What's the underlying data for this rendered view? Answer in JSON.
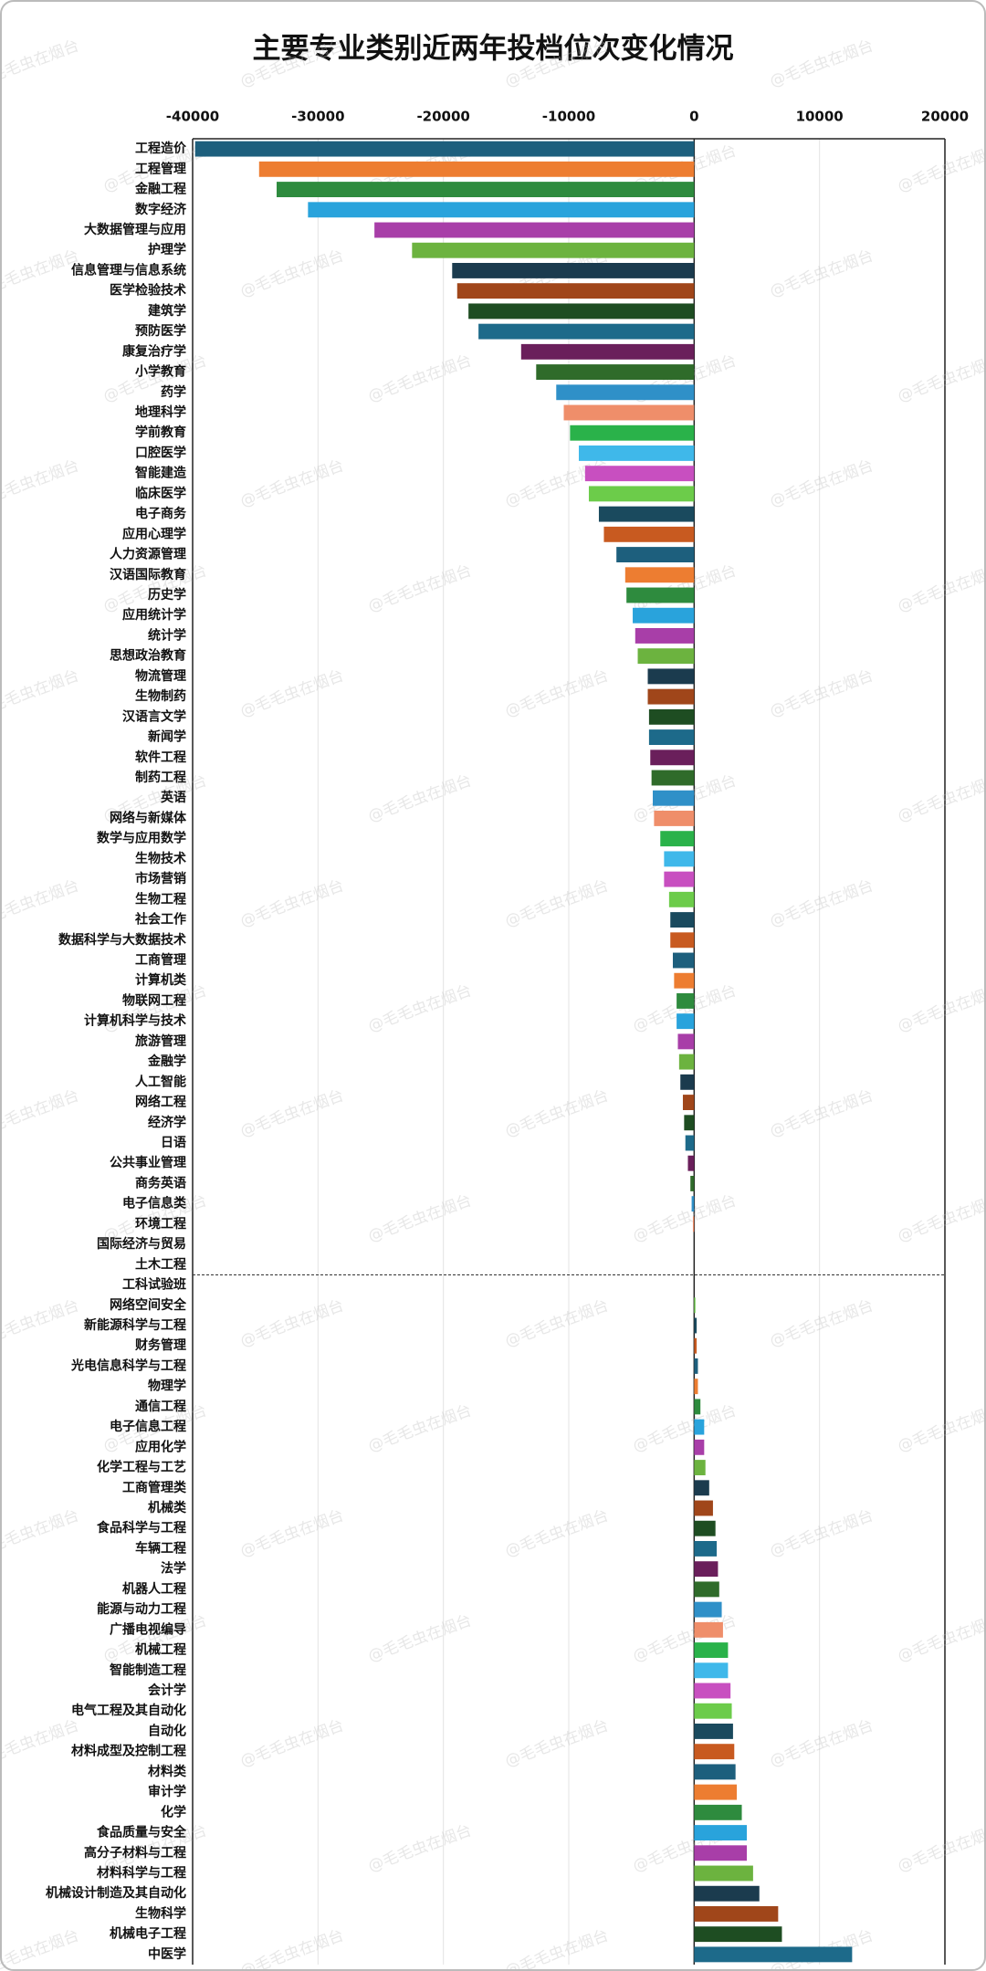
{
  "chart_data": {
    "type": "barh",
    "title": "主要专业类别近两年投档位次变化情况",
    "watermark": "@毛毛虫在烟台",
    "categories": [
      "工程造价",
      "工程管理",
      "金融工程",
      "数字经济",
      "大数据管理与应用",
      "护理学",
      "信息管理与信息系统",
      "医学检验技术",
      "建筑学",
      "预防医学",
      "康复治疗学",
      "小学教育",
      "药学",
      "地理科学",
      "学前教育",
      "口腔医学",
      "智能建造",
      "临床医学",
      "电子商务",
      "应用心理学",
      "人力资源管理",
      "汉语国际教育",
      "历史学",
      "应用统计学",
      "统计学",
      "思想政治教育",
      "物流管理",
      "生物制药",
      "汉语言文学",
      "新闻学",
      "软件工程",
      "制药工程",
      "英语",
      "网络与新媒体",
      "数学与应用数学",
      "生物技术",
      "市场营销",
      "生物工程",
      "社会工作",
      "数据科学与大数据技术",
      "工商管理",
      "计算机类",
      "物联网工程",
      "计算机科学与技术",
      "旅游管理",
      "金融学",
      "人工智能",
      "网络工程",
      "经济学",
      "日语",
      "公共事业管理",
      "商务英语",
      "电子信息类",
      "环境工程",
      "国际经济与贸易",
      "土木工程",
      "工科试验班",
      "网络空间安全",
      "新能源科学与工程",
      "财务管理",
      "光电信息科学与工程",
      "物理学",
      "通信工程",
      "电子信息工程",
      "应用化学",
      "化学工程与工艺",
      "工商管理类",
      "机械类",
      "食品科学与工程",
      "车辆工程",
      "法学",
      "机器人工程",
      "能源与动力工程",
      "广播电视编导",
      "机械工程",
      "智能制造工程",
      "会计学",
      "电气工程及其自动化",
      "自动化",
      "材料成型及控制工程",
      "材料类",
      "审计学",
      "化学",
      "食品质量与安全",
      "高分子材料与工程",
      "材料科学与工程",
      "机械设计制造及其自动化",
      "生物科学",
      "机械电子工程",
      "中医学"
    ],
    "values": [
      -39800,
      -34700,
      -33300,
      -30800,
      -25500,
      -22500,
      -19300,
      -18900,
      -18000,
      -17200,
      -13800,
      -12600,
      -11000,
      -10400,
      -9900,
      -9200,
      -8700,
      -8400,
      -7600,
      -7200,
      -6200,
      -5500,
      -5400,
      -4900,
      -4700,
      -4500,
      -3700,
      -3700,
      -3600,
      -3600,
      -3500,
      -3400,
      -3300,
      -3200,
      -2700,
      -2400,
      -2400,
      -2000,
      -1900,
      -1900,
      -1700,
      -1600,
      -1400,
      -1400,
      -1300,
      -1200,
      -1100,
      -900,
      -800,
      -700,
      -500,
      -300,
      -200,
      -100,
      0,
      0,
      0,
      100,
      200,
      200,
      300,
      300,
      500,
      800,
      800,
      900,
      1200,
      1500,
      1700,
      1800,
      1900,
      2000,
      2200,
      2300,
      2700,
      2700,
      2900,
      3000,
      3100,
      3200,
      3300,
      3400,
      3800,
      4200,
      4200,
      4700,
      5200,
      6700,
      7000,
      12600
    ],
    "palette": [
      "#1d5f7d",
      "#ed7d31",
      "#2e8b3e",
      "#29a3dc",
      "#a83ea8",
      "#6cb33f",
      "#1b3b4e",
      "#a0461a",
      "#1e4d22",
      "#1d6a8a",
      "#6a1f5b",
      "#2f6b2a",
      "#2f90c8",
      "#ef8e6a",
      "#2ab24a",
      "#3fb8ea",
      "#c84fc0",
      "#6ccc4a",
      "#1a4a5e",
      "#c85a20"
    ],
    "xlim": [
      -40000,
      20000
    ],
    "xticks": [
      -40000,
      -30000,
      -20000,
      -10000,
      0,
      10000,
      20000
    ],
    "grid": true
  }
}
